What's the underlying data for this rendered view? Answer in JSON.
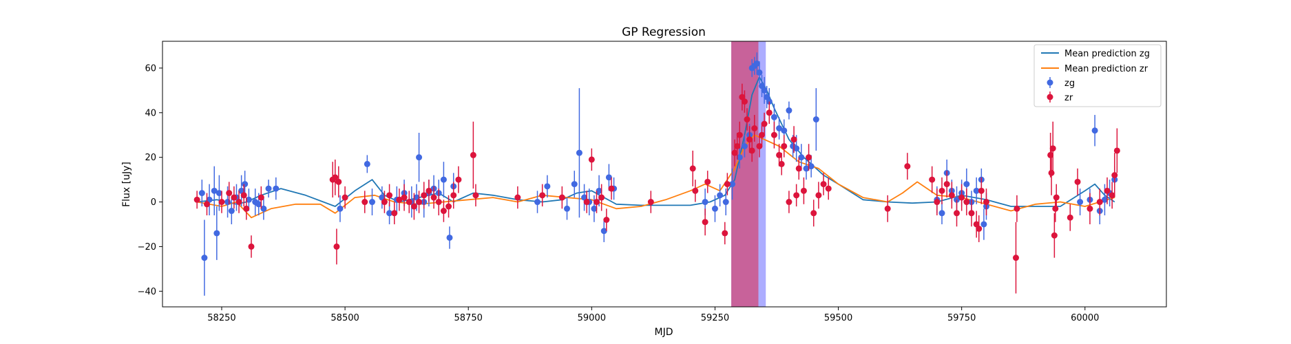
{
  "chart_data": {
    "type": "scatter",
    "title": "GP Regression",
    "xlabel": "MJD",
    "ylabel": "Flux [uJy]",
    "xlim": [
      58130,
      60165
    ],
    "ylim": [
      -47,
      72
    ],
    "xticks": [
      58250,
      58500,
      58750,
      59000,
      59250,
      59500,
      59750,
      60000
    ],
    "yticks": [
      -40,
      -20,
      0,
      20,
      40,
      60
    ],
    "grid": false,
    "legend_position": "top-right",
    "shaded_regions": [
      {
        "x0": 59283,
        "x1": 59353,
        "color": "#7777ff"
      },
      {
        "x0": 59283,
        "x1": 59338,
        "color": "#cc5588"
      }
    ],
    "series": [
      {
        "name": "Mean prediction zg",
        "kind": "line",
        "color": "#1f77b4",
        "x": [
          58200,
          58240,
          58280,
          58300,
          58330,
          58370,
          58420,
          58480,
          58520,
          58555,
          58580,
          58610,
          58650,
          58690,
          58720,
          58760,
          58800,
          58850,
          58900,
          58940,
          58970,
          59000,
          59050,
          59100,
          59150,
          59200,
          59240,
          59270,
          59290,
          59310,
          59325,
          59340,
          59355,
          59370,
          59400,
          59430,
          59470,
          59500,
          59550,
          59600,
          59650,
          59700,
          59750,
          59800,
          59850,
          59900,
          59950,
          60000,
          60020,
          60040,
          60060
        ],
        "y": [
          0,
          1,
          -1,
          0,
          3,
          6,
          3,
          -2,
          5,
          10,
          3,
          0,
          2,
          4,
          0,
          4,
          3,
          1,
          0,
          1,
          4,
          5,
          -1,
          -1.5,
          -1.5,
          -1.5,
          0,
          3,
          10,
          30,
          48,
          56,
          50,
          42,
          28,
          20,
          12,
          8,
          1,
          0,
          -0.5,
          0,
          3,
          1,
          -2,
          -2,
          -2,
          5,
          8,
          3,
          0
        ]
      },
      {
        "name": "Mean prediction zr",
        "kind": "line",
        "color": "#ff7f0e",
        "x": [
          58200,
          58250,
          58280,
          58310,
          58350,
          58400,
          58450,
          58480,
          58520,
          58560,
          58600,
          58650,
          58700,
          58750,
          58800,
          58850,
          58900,
          58950,
          59000,
          59050,
          59100,
          59150,
          59200,
          59230,
          59260,
          59290,
          59310,
          59330,
          59350,
          59380,
          59420,
          59460,
          59500,
          59550,
          59600,
          59630,
          59660,
          59700,
          59750,
          59800,
          59850,
          59900,
          59950,
          60000,
          60030,
          60060
        ],
        "y": [
          0,
          -2,
          0,
          -7,
          -3,
          -1,
          -1,
          -5,
          2,
          3,
          0,
          -1,
          0,
          1,
          2,
          0,
          3,
          2,
          1,
          -3,
          -2,
          1,
          5,
          8,
          5,
          15,
          25,
          30,
          28,
          25,
          18,
          15,
          8,
          2,
          0,
          4,
          9,
          3,
          2,
          -1,
          -4,
          -1,
          0,
          -2,
          0,
          2
        ]
      },
      {
        "name": "zg",
        "kind": "errorbar",
        "color": "#4169e1",
        "x": [
          58210,
          58215,
          58225,
          58235,
          58240,
          58245,
          58262,
          58270,
          58280,
          58290,
          58297,
          58305,
          58318,
          58325,
          58335,
          58345,
          58360,
          58490,
          58545,
          58555,
          58575,
          58590,
          58605,
          58620,
          58635,
          58645,
          58650,
          58660,
          58670,
          58680,
          58690,
          58700,
          58712,
          58720,
          58890,
          58910,
          58950,
          58965,
          58975,
          58985,
          58995,
          59005,
          59015,
          59025,
          59035,
          59045,
          59230,
          59250,
          59260,
          59272,
          59285,
          59300,
          59310,
          59320,
          59325,
          59330,
          59335,
          59340,
          59345,
          59350,
          59355,
          59360,
          59370,
          59380,
          59390,
          59400,
          59408,
          59415,
          59425,
          59435,
          59445,
          59455,
          59700,
          59710,
          59720,
          59730,
          59740,
          59750,
          59760,
          59770,
          59780,
          59790,
          59795,
          59800,
          59990,
          60010,
          60020,
          60030,
          60040,
          60050,
          60060
        ],
        "y": [
          4,
          -25,
          1,
          5,
          -14,
          4,
          0,
          -4,
          2,
          5,
          8,
          1,
          0,
          -1,
          -3,
          6,
          6,
          -3,
          17,
          0,
          2,
          -5,
          1,
          4,
          0,
          2,
          20,
          0,
          4,
          6,
          4,
          10,
          -16,
          7,
          0,
          7,
          -3,
          8,
          22,
          2,
          0,
          -3,
          5,
          -13,
          11,
          6,
          0,
          -3,
          3,
          0,
          8,
          20,
          25,
          30,
          60,
          61,
          62,
          58,
          52,
          50,
          47,
          45,
          38,
          33,
          32,
          41,
          25,
          24,
          20,
          15,
          16,
          37,
          1,
          -5,
          13,
          5,
          1,
          4,
          8,
          0,
          5,
          10,
          -10,
          -2,
          0,
          1,
          32,
          -4,
          1,
          4,
          10
        ],
        "err": [
          6,
          17,
          7,
          11,
          12,
          8,
          7,
          6,
          6,
          7,
          6,
          5,
          6,
          5,
          5,
          4,
          5,
          6,
          4,
          6,
          5,
          5,
          6,
          6,
          7,
          6,
          11,
          7,
          6,
          6,
          6,
          8,
          5,
          6,
          5,
          5,
          5,
          6,
          29,
          6,
          6,
          6,
          7,
          5,
          6,
          5,
          6,
          6,
          5,
          6,
          7,
          5,
          5,
          5,
          4,
          4,
          5,
          5,
          5,
          6,
          5,
          6,
          6,
          5,
          5,
          4,
          5,
          6,
          6,
          5,
          5,
          14,
          6,
          5,
          6,
          5,
          6,
          6,
          7,
          5,
          6,
          5,
          7,
          6,
          6,
          5,
          7,
          6,
          7,
          6,
          6
        ]
      },
      {
        "name": "zr",
        "kind": "errorbar",
        "color": "#dc143c",
        "x": [
          58200,
          58220,
          58250,
          58265,
          58275,
          58285,
          58295,
          58300,
          58310,
          58330,
          58475,
          58480,
          58483,
          58487,
          58500,
          58540,
          58580,
          58590,
          58600,
          58610,
          58620,
          58630,
          58640,
          58650,
          58660,
          58670,
          58680,
          58690,
          58700,
          58710,
          58720,
          58730,
          58760,
          58765,
          58850,
          58900,
          58940,
          58990,
          59000,
          59010,
          59020,
          59030,
          59040,
          59120,
          59205,
          59210,
          59230,
          59235,
          59270,
          59275,
          59290,
          59295,
          59300,
          59305,
          59310,
          59315,
          59320,
          59325,
          59330,
          59340,
          59345,
          59350,
          59360,
          59370,
          59380,
          59385,
          59390,
          59400,
          59410,
          59415,
          59420,
          59430,
          59440,
          59450,
          59460,
          59470,
          59480,
          59600,
          59640,
          59690,
          59700,
          59710,
          59720,
          59730,
          59740,
          59750,
          59760,
          59770,
          59780,
          59785,
          59790,
          59800,
          59860,
          59862,
          59930,
          59932,
          59935,
          59938,
          59940,
          59942,
          59970,
          59985,
          60010,
          60030,
          60045,
          60055,
          60060,
          60065
        ],
        "y": [
          1,
          -1,
          0,
          4,
          2,
          0,
          3,
          -3,
          -20,
          2,
          10,
          11,
          -20,
          9,
          2,
          0,
          0,
          3,
          -5,
          1,
          2,
          0,
          -2,
          0,
          3,
          5,
          2,
          0,
          -4,
          -2,
          3,
          10,
          21,
          3,
          2,
          3,
          2,
          0,
          19,
          0,
          2,
          -8,
          6,
          0,
          15,
          5,
          -9,
          9,
          -14,
          8,
          22,
          25,
          30,
          47,
          45,
          37,
          28,
          23,
          33,
          25,
          30,
          35,
          40,
          30,
          21,
          17,
          25,
          0,
          28,
          3,
          15,
          5,
          20,
          -5,
          3,
          8,
          6,
          -3,
          16,
          10,
          0,
          5,
          8,
          3,
          -5,
          2,
          0,
          -5,
          -10,
          -12,
          5,
          0,
          -25,
          -3,
          21,
          13,
          24,
          -15,
          -3,
          2,
          -7,
          9,
          -3,
          0,
          5,
          3,
          12,
          23
        ],
        "err": [
          4,
          5,
          5,
          5,
          5,
          5,
          5,
          5,
          5,
          5,
          8,
          8,
          8,
          7,
          5,
          5,
          5,
          5,
          5,
          5,
          6,
          5,
          6,
          5,
          6,
          5,
          5,
          6,
          5,
          5,
          6,
          6,
          15,
          5,
          5,
          5,
          5,
          5,
          5,
          5,
          6,
          5,
          5,
          5,
          8,
          5,
          6,
          5,
          5,
          5,
          6,
          6,
          6,
          6,
          5,
          5,
          6,
          5,
          6,
          5,
          5,
          5,
          5,
          6,
          5,
          5,
          5,
          5,
          6,
          5,
          5,
          6,
          6,
          6,
          6,
          5,
          5,
          6,
          6,
          6,
          6,
          6,
          6,
          6,
          6,
          6,
          6,
          6,
          6,
          6,
          6,
          6,
          16,
          6,
          10,
          10,
          12,
          10,
          6,
          6,
          6,
          6,
          7,
          6,
          6,
          6,
          10,
          10
        ]
      }
    ]
  }
}
